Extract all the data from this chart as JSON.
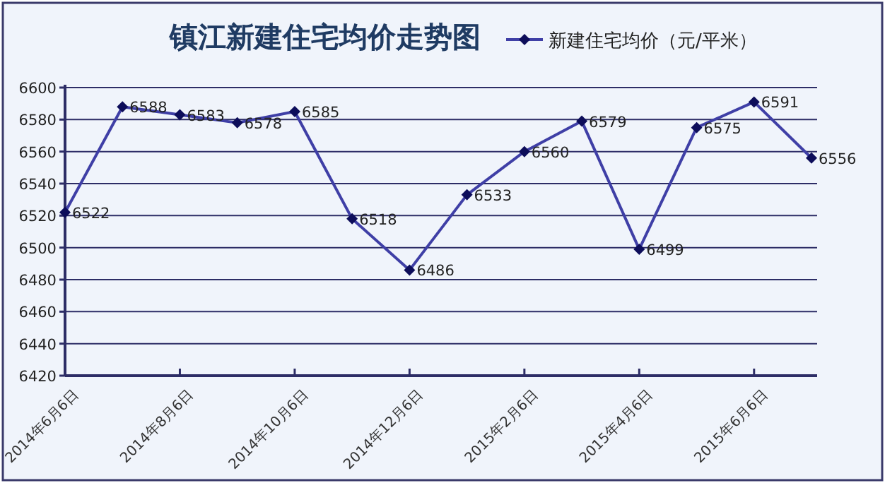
{
  "chart_data": {
    "type": "line",
    "title": "镇江新建住宅均价走势图",
    "categories": [
      "2014年6月6日",
      null,
      "2014年8月6日",
      null,
      "2014年10月6日",
      null,
      "2014年12月6日",
      null,
      "2015年2月6日",
      null,
      "2015年4月6日",
      null,
      "2015年6月6日",
      null
    ],
    "series": [
      {
        "name": "新建住宅均价（元/平米）",
        "color": "#3f3fa6",
        "values": [
          6522,
          6588,
          6583,
          6578,
          6585,
          6518,
          6486,
          6533,
          6560,
          6579,
          6499,
          6575,
          6591,
          6556
        ]
      }
    ],
    "ylim": [
      6420,
      6600
    ],
    "yticks": [
      6420,
      6440,
      6460,
      6480,
      6500,
      6520,
      6540,
      6560,
      6580,
      6600
    ],
    "grid": "y",
    "legend": "top right",
    "marker": "diamond",
    "data_labels": true
  }
}
